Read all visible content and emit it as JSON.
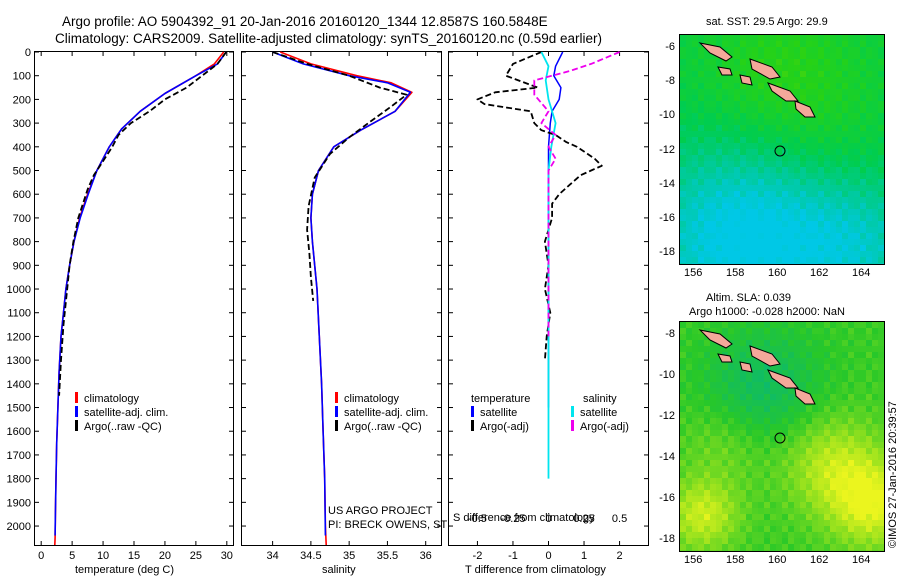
{
  "header": {
    "line1": "Argo profile: AO 5904392_91 20-Jan-2016 20160120_1344 12.8587S 160.5848E",
    "line2": "Climatology: CARS2009. Satellite-adjusted climatology: synTS_20160120.nc (0.59d earlier)"
  },
  "map1": {
    "title": "sat. SST: 29.5 Argo: 29.9"
  },
  "map2": {
    "title1": "Altim. SLA: 0.039",
    "title2": "Argo h1000: -0.028 h2000: NaN"
  },
  "credits": {
    "line1": "US ARGO PROJECT",
    "line2": "PI: BRECK OWENS, STEVE JAYNE, P.E. ROBBINS"
  },
  "timestamp": "©IMOS 27-Jan-2016 20:39:57",
  "map_ticks": {
    "x": [
      "156",
      "158",
      "160",
      "162",
      "164"
    ],
    "y1": [
      "-6",
      "-8",
      "-10",
      "-12",
      "-14",
      "-16",
      "-18"
    ],
    "y2": [
      "-8",
      "-10",
      "-12",
      "-14",
      "-16",
      "-18"
    ]
  },
  "colors": {
    "climatology": "#ff0000",
    "satellite": "#0000ff",
    "argo": "#000000",
    "sal_satellite": "#00e5ee",
    "sal_argo": "#ee00ee",
    "land": "#f4a89a"
  },
  "chart_data": [
    {
      "type": "line",
      "xlabel": "temperature (deg C)",
      "ylabel": "",
      "xlim": [
        -1,
        31
      ],
      "ylim": [
        2080,
        0
      ],
      "xticks": [
        "0",
        "5",
        "10",
        "15",
        "20",
        "25",
        "30"
      ],
      "yticks": [
        "0",
        "100",
        "200",
        "300",
        "400",
        "500",
        "600",
        "700",
        "800",
        "900",
        "1000",
        "1100",
        "1200",
        "1300",
        "1400",
        "1500",
        "1600",
        "1700",
        "1800",
        "1900",
        "2000"
      ],
      "legend": [
        "climatology",
        "satellite-adj. clim.",
        "Argo(..raw -QC)"
      ],
      "series": [
        {
          "name": "climatology",
          "x": [
            29.5,
            28,
            25,
            20,
            16,
            13,
            11,
            9,
            7.5,
            6.2,
            5.3,
            4.6,
            4.0,
            3.6,
            3.2,
            2.9,
            2.7,
            2.5,
            2.4,
            2.3,
            2.25,
            2.2
          ],
          "y": [
            0,
            50,
            100,
            175,
            250,
            325,
            400,
            500,
            600,
            700,
            800,
            900,
            1000,
            1100,
            1200,
            1350,
            1500,
            1650,
            1800,
            1950,
            2050,
            2080
          ]
        },
        {
          "name": "satellite-adj. clim.",
          "x": [
            29.9,
            28.5,
            25,
            20,
            16,
            13,
            11,
            9,
            7.6,
            6.3,
            5.3,
            4.6,
            4.0,
            3.6,
            3.2,
            2.9,
            2.7,
            2.5,
            2.4,
            2.3,
            2.25
          ],
          "y": [
            0,
            50,
            100,
            175,
            250,
            325,
            400,
            500,
            600,
            700,
            800,
            900,
            1000,
            1100,
            1200,
            1350,
            1500,
            1650,
            1800,
            1950,
            2040
          ]
        },
        {
          "name": "Argo(..raw -QC)",
          "x": [
            29.9,
            28.5,
            26,
            23.5,
            20,
            17.5,
            14.5,
            12.5,
            11.5,
            10,
            8.5,
            7.5,
            6.0,
            5.2,
            4.6,
            4.2,
            3.6,
            3.2,
            2.9
          ],
          "y": [
            0,
            50,
            100,
            150,
            200,
            250,
            300,
            350,
            400,
            460,
            520,
            580,
            700,
            800,
            900,
            1000,
            1150,
            1300,
            1450
          ]
        }
      ]
    },
    {
      "type": "line",
      "xlabel": "salinity",
      "xlim": [
        33.6,
        36.2
      ],
      "ylim": [
        2080,
        0
      ],
      "xticks": [
        "34",
        "34.5",
        "35",
        "35.5",
        "36"
      ],
      "legend": [
        "climatology",
        "satellite-adj. clim.",
        "Argo(..raw -QC)"
      ],
      "series": [
        {
          "name": "climatology",
          "x": [
            34.1,
            34.5,
            35.1,
            35.55,
            35.82,
            35.6,
            35.15,
            34.8,
            34.6,
            34.52,
            34.5,
            34.52,
            34.55,
            34.58,
            34.61,
            34.64,
            34.66,
            34.68,
            34.69,
            34.7
          ],
          "y": [
            0,
            50,
            100,
            130,
            170,
            250,
            330,
            400,
            500,
            600,
            700,
            800,
            900,
            1000,
            1200,
            1400,
            1600,
            1800,
            2000,
            2080
          ]
        },
        {
          "name": "satellite-adj. clim.",
          "x": [
            34.0,
            34.4,
            35.0,
            35.5,
            35.8,
            35.6,
            35.15,
            34.8,
            34.6,
            34.52,
            34.5,
            34.52,
            34.55,
            34.58,
            34.61,
            34.64,
            34.66,
            34.68,
            34.69
          ],
          "y": [
            0,
            50,
            100,
            130,
            170,
            250,
            330,
            400,
            500,
            600,
            700,
            800,
            900,
            1000,
            1200,
            1400,
            1600,
            1800,
            2040
          ]
        },
        {
          "name": "Argo(..raw -QC)",
          "x": [
            34.0,
            34.45,
            35.0,
            35.4,
            35.75,
            35.55,
            35.25,
            35.0,
            34.75,
            34.55,
            34.47,
            34.45,
            34.48,
            34.5,
            34.53
          ],
          "y": [
            0,
            50,
            100,
            150,
            180,
            230,
            300,
            360,
            430,
            530,
            650,
            750,
            850,
            950,
            1050
          ]
        }
      ]
    },
    {
      "type": "line",
      "xlabel": "T difference from climatology",
      "x2label": "S difference from climatology",
      "xlim": [
        -2.8,
        2.8
      ],
      "ylim": [
        2080,
        0
      ],
      "xticks": [
        "-2",
        "-1",
        "0",
        "1",
        "2"
      ],
      "x2lim": [
        -0.7,
        0.7
      ],
      "x2ticks": [
        "-0.5",
        "-0.25",
        "0",
        "0.25",
        "0.5"
      ],
      "legend_temperature": [
        "temperature",
        "satellite",
        "Argo(-adj)"
      ],
      "legend_salinity": [
        "salinity",
        "satellite",
        "Argo(-adj)"
      ],
      "series": [
        {
          "name": "temperature satellite",
          "x": [
            0.4,
            0.2,
            0.15,
            0.35,
            0.3,
            0.1,
            0.05,
            0,
            0,
            0,
            0,
            0,
            0,
            0
          ],
          "y": [
            0,
            60,
            100,
            150,
            200,
            250,
            300,
            400,
            500,
            700,
            900,
            1100,
            1300,
            1500
          ]
        },
        {
          "name": "temperature Argo(-adj)",
          "x": [
            -0.2,
            -1.0,
            -1.2,
            -0.3,
            -1.5,
            -2.0,
            -1.8,
            -0.5,
            -0.4,
            -0.2,
            0.2,
            0.5,
            0.8,
            1.0,
            1.3,
            1.5,
            1.2,
            0.9,
            0.6,
            0.3,
            0.1,
            0.1,
            -0.1,
            0.0,
            -0.1,
            0.05,
            -0.05,
            -0.1
          ],
          "y": [
            0,
            50,
            100,
            150,
            170,
            200,
            220,
            250,
            300,
            330,
            350,
            380,
            400,
            420,
            450,
            480,
            500,
            520,
            560,
            600,
            640,
            700,
            800,
            900,
            1000,
            1100,
            1200,
            1300
          ]
        },
        {
          "name": "salinity satellite",
          "x": [
            -0.05,
            0.0,
            -0.02,
            0.0,
            0.05,
            0.02,
            0.0,
            0.0,
            0.0,
            0.0
          ],
          "y": [
            0,
            60,
            120,
            200,
            300,
            400,
            500,
            700,
            1000,
            1800
          ]
        },
        {
          "name": "salinity Argo(-adj)",
          "x": [
            0.5,
            0.3,
            0.15,
            -0.1,
            -0.1,
            0.0,
            -0.05,
            0.05,
            0.0,
            0.05,
            0.0,
            0.0,
            0.0,
            0.0,
            0.0,
            0.0
          ],
          "y": [
            0,
            50,
            80,
            120,
            180,
            250,
            300,
            350,
            400,
            450,
            500,
            600,
            700,
            800,
            1000,
            1200
          ]
        }
      ]
    }
  ]
}
